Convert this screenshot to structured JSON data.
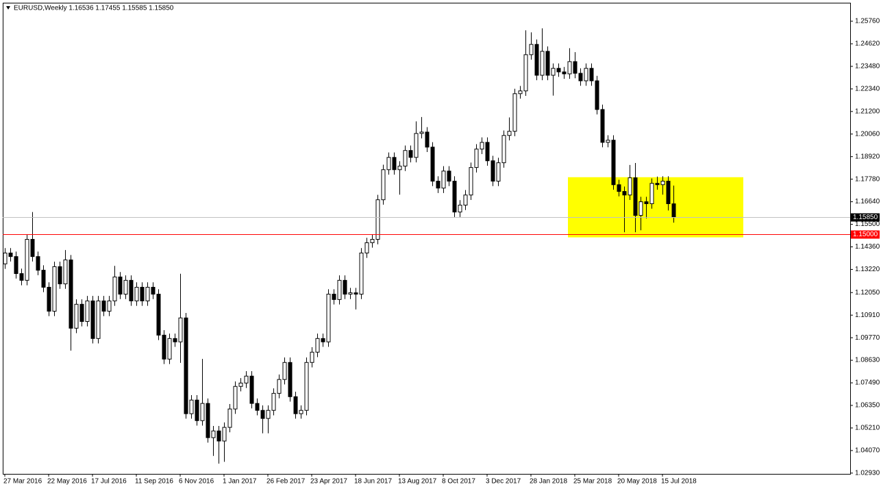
{
  "chart_data": {
    "type": "candlestick",
    "title": "EURUSD,Weekly  1.16536 1.17455 1.15585 1.15850",
    "categories": [
      "27 Mar 2016",
      null,
      null,
      null,
      null,
      null,
      null,
      null,
      "22 May 2016",
      null,
      null,
      null,
      null,
      null,
      null,
      null,
      "17 Jul 2016",
      null,
      null,
      null,
      null,
      null,
      null,
      null,
      "11 Sep 2016",
      null,
      null,
      null,
      null,
      null,
      null,
      null,
      "6 Nov 2016",
      null,
      null,
      null,
      null,
      null,
      null,
      null,
      "1 Jan 2017",
      null,
      null,
      null,
      null,
      null,
      null,
      null,
      "26 Feb 2017",
      null,
      null,
      null,
      null,
      null,
      null,
      null,
      "23 Apr 2017",
      null,
      null,
      null,
      null,
      null,
      null,
      null,
      "18 Jun 2017",
      null,
      null,
      null,
      null,
      null,
      null,
      null,
      "13 Aug 2017",
      null,
      null,
      null,
      null,
      null,
      null,
      null,
      "8 Oct 2017",
      null,
      null,
      null,
      null,
      null,
      null,
      null,
      "3 Dec 2017",
      null,
      null,
      null,
      null,
      null,
      null,
      null,
      "28 Jan 2018",
      null,
      null,
      null,
      null,
      null,
      null,
      null,
      "25 Mar 2018",
      null,
      null,
      null,
      null,
      null,
      null,
      null,
      "20 May 2018",
      null,
      null,
      null,
      null,
      null,
      null,
      null,
      "15 Jul 2018",
      null,
      null
    ],
    "open": [
      1.135,
      1.1405,
      1.1387,
      1.1301,
      1.1267,
      1.1474,
      1.1387,
      1.1318,
      1.1232,
      1.1111,
      1.1336,
      1.1249,
      1.137,
      1.1025,
      1.1146,
      1.1059,
      1.1163,
      1.0973,
      1.1163,
      1.1111,
      1.1163,
      1.1284,
      1.1197,
      1.1267,
      1.1163,
      1.1232,
      1.1163,
      1.1232,
      1.1197,
      1.099,
      1.0869,
      1.0973,
      1.0956,
      1.1077,
      1.0593,
      1.0662,
      1.0558,
      1.0645,
      1.0472,
      1.0506,
      1.0455,
      1.0524,
      1.0617,
      1.0731,
      1.0748,
      1.0783,
      1.0645,
      1.061,
      1.0569,
      1.061,
      1.0696,
      1.0766,
      1.0852,
      1.0679,
      1.0593,
      1.061,
      1.0852,
      1.0904,
      1.0973,
      1.0956,
      1.1197,
      1.117,
      1.1267,
      1.1197,
      1.1204,
      1.1197,
      1.1405,
      1.1457,
      1.1474,
      1.1674,
      1.1826,
      1.1888,
      1.1826,
      1.1844,
      1.1923,
      1.1888,
      1.2009,
      1.2016,
      1.194,
      1.1768,
      1.1733,
      1.1819,
      1.1768,
      1.1612,
      1.1647,
      1.1698,
      1.1837,
      1.193,
      1.1964,
      1.1871,
      1.1768,
      1.1861,
      1.1999,
      1.202,
      1.221,
      1.2224,
      1.2407,
      1.2459,
      1.2303,
      1.2424,
      1.2303,
      1.2338,
      1.232,
      1.231,
      1.2372,
      1.2313,
      1.2275,
      1.2338,
      1.2275,
      1.213,
      1.1964,
      1.1975,
      1.175,
      1.1716,
      1.1698,
      1.1785,
      1.1595,
      1.1664,
      1.1654,
      1.1757,
      1.175,
      1.1768,
      1.16536
    ],
    "high": [
      1.143,
      1.143,
      1.1412,
      1.1326,
      1.1499,
      1.1612,
      1.1412,
      1.1343,
      1.1257,
      1.1361,
      1.1361,
      1.142,
      1.1395,
      1.1171,
      1.1171,
      1.1188,
      1.1188,
      1.1188,
      1.1188,
      1.1188,
      1.134,
      1.1309,
      1.1292,
      1.1292,
      1.1257,
      1.1257,
      1.1257,
      1.1257,
      1.1222,
      1.1015,
      1.0998,
      1.0998,
      1.13,
      1.1102,
      1.0687,
      1.0687,
      1.087,
      1.067,
      1.0531,
      1.0531,
      1.0549,
      1.0642,
      1.0756,
      1.0773,
      1.0808,
      1.0808,
      1.067,
      1.0635,
      1.0635,
      1.0721,
      1.0791,
      1.0877,
      1.0877,
      1.0704,
      1.0635,
      1.0877,
      1.0929,
      1.0998,
      1.0998,
      1.1222,
      1.1222,
      1.1292,
      1.1292,
      1.1229,
      1.1229,
      1.143,
      1.1482,
      1.1499,
      1.1699,
      1.1851,
      1.1913,
      1.1913,
      1.1869,
      1.1948,
      1.1948,
      1.207,
      1.2092,
      1.2041,
      1.1965,
      1.1793,
      1.1844,
      1.1844,
      1.1793,
      1.1672,
      1.1723,
      1.1862,
      1.1955,
      1.1989,
      1.1989,
      1.1896,
      1.1886,
      1.2024,
      1.209,
      1.2235,
      1.2249,
      1.253,
      1.252,
      1.2484,
      1.254,
      1.2449,
      1.2363,
      1.2363,
      1.2345,
      1.244,
      1.242,
      1.2338,
      1.2363,
      1.2363,
      1.23,
      1.2155,
      1.2,
      1.2,
      1.1775,
      1.1741,
      1.185,
      1.186,
      1.1689,
      1.1689,
      1.1782,
      1.1791,
      1.1793,
      1.1793,
      1.17455
    ],
    "low": [
      1.1325,
      1.1362,
      1.1276,
      1.1242,
      1.1242,
      1.1362,
      1.1293,
      1.1207,
      1.1086,
      1.1086,
      1.1224,
      1.1224,
      1.0912,
      1.1,
      1.1034,
      1.1034,
      1.0948,
      1.0948,
      1.1086,
      1.1086,
      1.1138,
      1.1172,
      1.1172,
      1.1138,
      1.1138,
      1.1138,
      1.1138,
      1.1172,
      1.0965,
      1.0844,
      1.0844,
      1.0931,
      1.085,
      1.0568,
      1.0568,
      1.0533,
      1.0533,
      1.0447,
      1.038,
      1.0341,
      1.035,
      1.0499,
      1.0592,
      1.0706,
      1.0723,
      1.062,
      1.0585,
      1.0494,
      1.0494,
      1.0585,
      1.0671,
      1.0741,
      1.0654,
      1.0568,
      1.0568,
      1.0585,
      1.0827,
      1.0879,
      1.0931,
      1.0931,
      1.1145,
      1.1145,
      1.1172,
      1.1172,
      1.112,
      1.1172,
      1.138,
      1.1432,
      1.1449,
      1.1649,
      1.1801,
      1.1801,
      1.17,
      1.1819,
      1.1863,
      1.1863,
      1.1984,
      1.1915,
      1.1743,
      1.1708,
      1.1708,
      1.1743,
      1.1587,
      1.1587,
      1.1622,
      1.1673,
      1.1812,
      1.1905,
      1.1846,
      1.1743,
      1.1743,
      1.1836,
      1.1974,
      1.1995,
      1.2185,
      1.2199,
      1.2382,
      1.2278,
      1.2278,
      1.2278,
      1.22,
      1.2295,
      1.2285,
      1.2285,
      1.2288,
      1.225,
      1.225,
      1.225,
      1.2105,
      1.1939,
      1.1939,
      1.1725,
      1.1691,
      1.151,
      1.1673,
      1.151,
      1.152,
      1.158,
      1.1629,
      1.1725,
      1.17,
      1.162,
      1.15585
    ],
    "close": [
      1.1405,
      1.1387,
      1.1301,
      1.1267,
      1.1474,
      1.1387,
      1.1318,
      1.1232,
      1.1111,
      1.1336,
      1.1249,
      1.137,
      1.1025,
      1.1146,
      1.1059,
      1.1163,
      1.0973,
      1.1163,
      1.1111,
      1.1163,
      1.1284,
      1.1197,
      1.1267,
      1.1163,
      1.1232,
      1.1163,
      1.1232,
      1.1197,
      1.099,
      1.0869,
      1.0973,
      1.0956,
      1.1077,
      1.0593,
      1.0662,
      1.0558,
      1.0645,
      1.0472,
      1.0506,
      1.0455,
      1.0524,
      1.0617,
      1.0731,
      1.0748,
      1.0783,
      1.0645,
      1.061,
      1.0569,
      1.061,
      1.0696,
      1.0766,
      1.0852,
      1.0679,
      1.0593,
      1.061,
      1.0852,
      1.0904,
      1.0973,
      1.0956,
      1.1197,
      1.117,
      1.1267,
      1.1197,
      1.1204,
      1.1197,
      1.1405,
      1.1457,
      1.1474,
      1.1674,
      1.1826,
      1.1888,
      1.1826,
      1.1844,
      1.1923,
      1.1888,
      1.2009,
      1.2016,
      1.194,
      1.1768,
      1.1733,
      1.1819,
      1.1768,
      1.1612,
      1.1647,
      1.1698,
      1.1837,
      1.193,
      1.1964,
      1.1871,
      1.1768,
      1.1861,
      1.1999,
      1.202,
      1.221,
      1.2224,
      1.2407,
      1.2459,
      1.2303,
      1.2424,
      1.2303,
      1.2338,
      1.232,
      1.231,
      1.2372,
      1.2313,
      1.2275,
      1.2338,
      1.2275,
      1.213,
      1.1964,
      1.1975,
      1.175,
      1.1716,
      1.1698,
      1.1785,
      1.1595,
      1.1664,
      1.1654,
      1.1757,
      1.175,
      1.1768,
      1.1654,
      1.1585
    ],
    "up_color": "#ffffff",
    "down_color": "#000000",
    "ylim": [
      1.0289,
      1.2666
    ],
    "yticks": [
      {
        "value": 1.2576,
        "label": "1.25760"
      },
      {
        "value": 1.2462,
        "label": "1.24620"
      },
      {
        "value": 1.2348,
        "label": "1.23480"
      },
      {
        "value": 1.2234,
        "label": "1.22340"
      },
      {
        "value": 1.212,
        "label": "1.21200"
      },
      {
        "value": 1.2006,
        "label": "1.20060"
      },
      {
        "value": 1.1892,
        "label": "1.18920"
      },
      {
        "value": 1.1778,
        "label": "1.17780"
      },
      {
        "value": 1.1664,
        "label": "1.16640"
      },
      {
        "value": 1.155,
        "label": "1.15500"
      },
      {
        "value": 1.1436,
        "label": "1.14360"
      },
      {
        "value": 1.1322,
        "label": "1.13220"
      },
      {
        "value": 1.1205,
        "label": "1.12050"
      },
      {
        "value": 1.1091,
        "label": "1.10910"
      },
      {
        "value": 1.0977,
        "label": "1.09770"
      },
      {
        "value": 1.0863,
        "label": "1.08630"
      },
      {
        "value": 1.0749,
        "label": "1.07490"
      },
      {
        "value": 1.0635,
        "label": "1.06350"
      },
      {
        "value": 1.0521,
        "label": "1.05210"
      },
      {
        "value": 1.0407,
        "label": "1.04070"
      },
      {
        "value": 1.0293,
        "label": "1.02930"
      }
    ],
    "price_lines": [
      {
        "value": 1.1585,
        "label": "1.15850",
        "color": "#c0c0c0",
        "label_color": "#000000"
      },
      {
        "value": 1.15,
        "label": "1.15000",
        "color": "#ff0000",
        "label_color": "#ff0000"
      }
    ],
    "zone": {
      "y": [
        1.1788,
        1.1484
      ],
      "x": [
        102.75,
        134.75
      ],
      "color": "#ffff00"
    }
  }
}
